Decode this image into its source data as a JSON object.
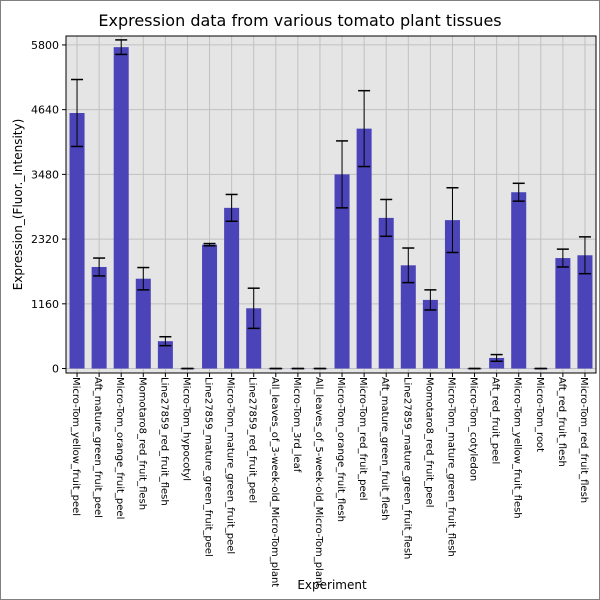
{
  "chart_data": {
    "type": "bar",
    "title": "Expression data from various tomato plant tissues",
    "xlabel": "Experiment",
    "ylabel": "Expression_(Fluor._Intensity)",
    "ylim": [
      -80,
      5960
    ],
    "yticks": [
      0,
      1160,
      2320,
      3480,
      4640,
      5800
    ],
    "grid": true,
    "bar_color": "#4b44b8",
    "plot_background": "#e5e5e5",
    "grid_color": "#c0c0c0",
    "categories": [
      "Micro-Tom_yellow_fruit_peel",
      "Aft_mature_green_fruit_peel",
      "Micro-Tom_orange_fruit_peel",
      "Momotaro8_red_fruit_flesh",
      "Line27859_red_fruit_flesh",
      "Micro-Tom_hypocotyl",
      "Line27859_mature_green_fruit_peel",
      "Micro-Tom_mature_green_fruit_peel",
      "Line27859_red_fruit_peel",
      "All_leaves_of_3-week-old_Micro-Tom_plant",
      "Micro-Tom_3rd_leaf",
      "All_leaves_of_5-week-old_Micro-Tom_plant",
      "Micro-Tom_orange_fruit_flesh",
      "Micro-Tom_red_fruit_peel",
      "Aft_mature_green_fruit_flesh",
      "Line27859_mature_green_fruit_flesh",
      "Momotaro8_red_fruit_peel",
      "Micro-Tom_mature_green_fruit_flesh",
      "Micro-Tom_cotyledon",
      "Aft_red_fruit_peel",
      "Micro-Tom_yellow_fruit_flesh",
      "Micro-Tom_root",
      "Aft_red_fruit_flesh",
      "Micro-Tom_red_fruit_flesh"
    ],
    "values": [
      4580,
      1820,
      5760,
      1610,
      490,
      0,
      2220,
      2880,
      1080,
      0,
      0,
      0,
      3480,
      4300,
      2700,
      1850,
      1230,
      2660,
      0,
      190,
      3160,
      0,
      1980,
      2030
    ],
    "errors": [
      600,
      160,
      130,
      200,
      80,
      0,
      20,
      240,
      360,
      0,
      0,
      0,
      600,
      680,
      330,
      310,
      180,
      580,
      0,
      60,
      160,
      0,
      160,
      330
    ]
  }
}
